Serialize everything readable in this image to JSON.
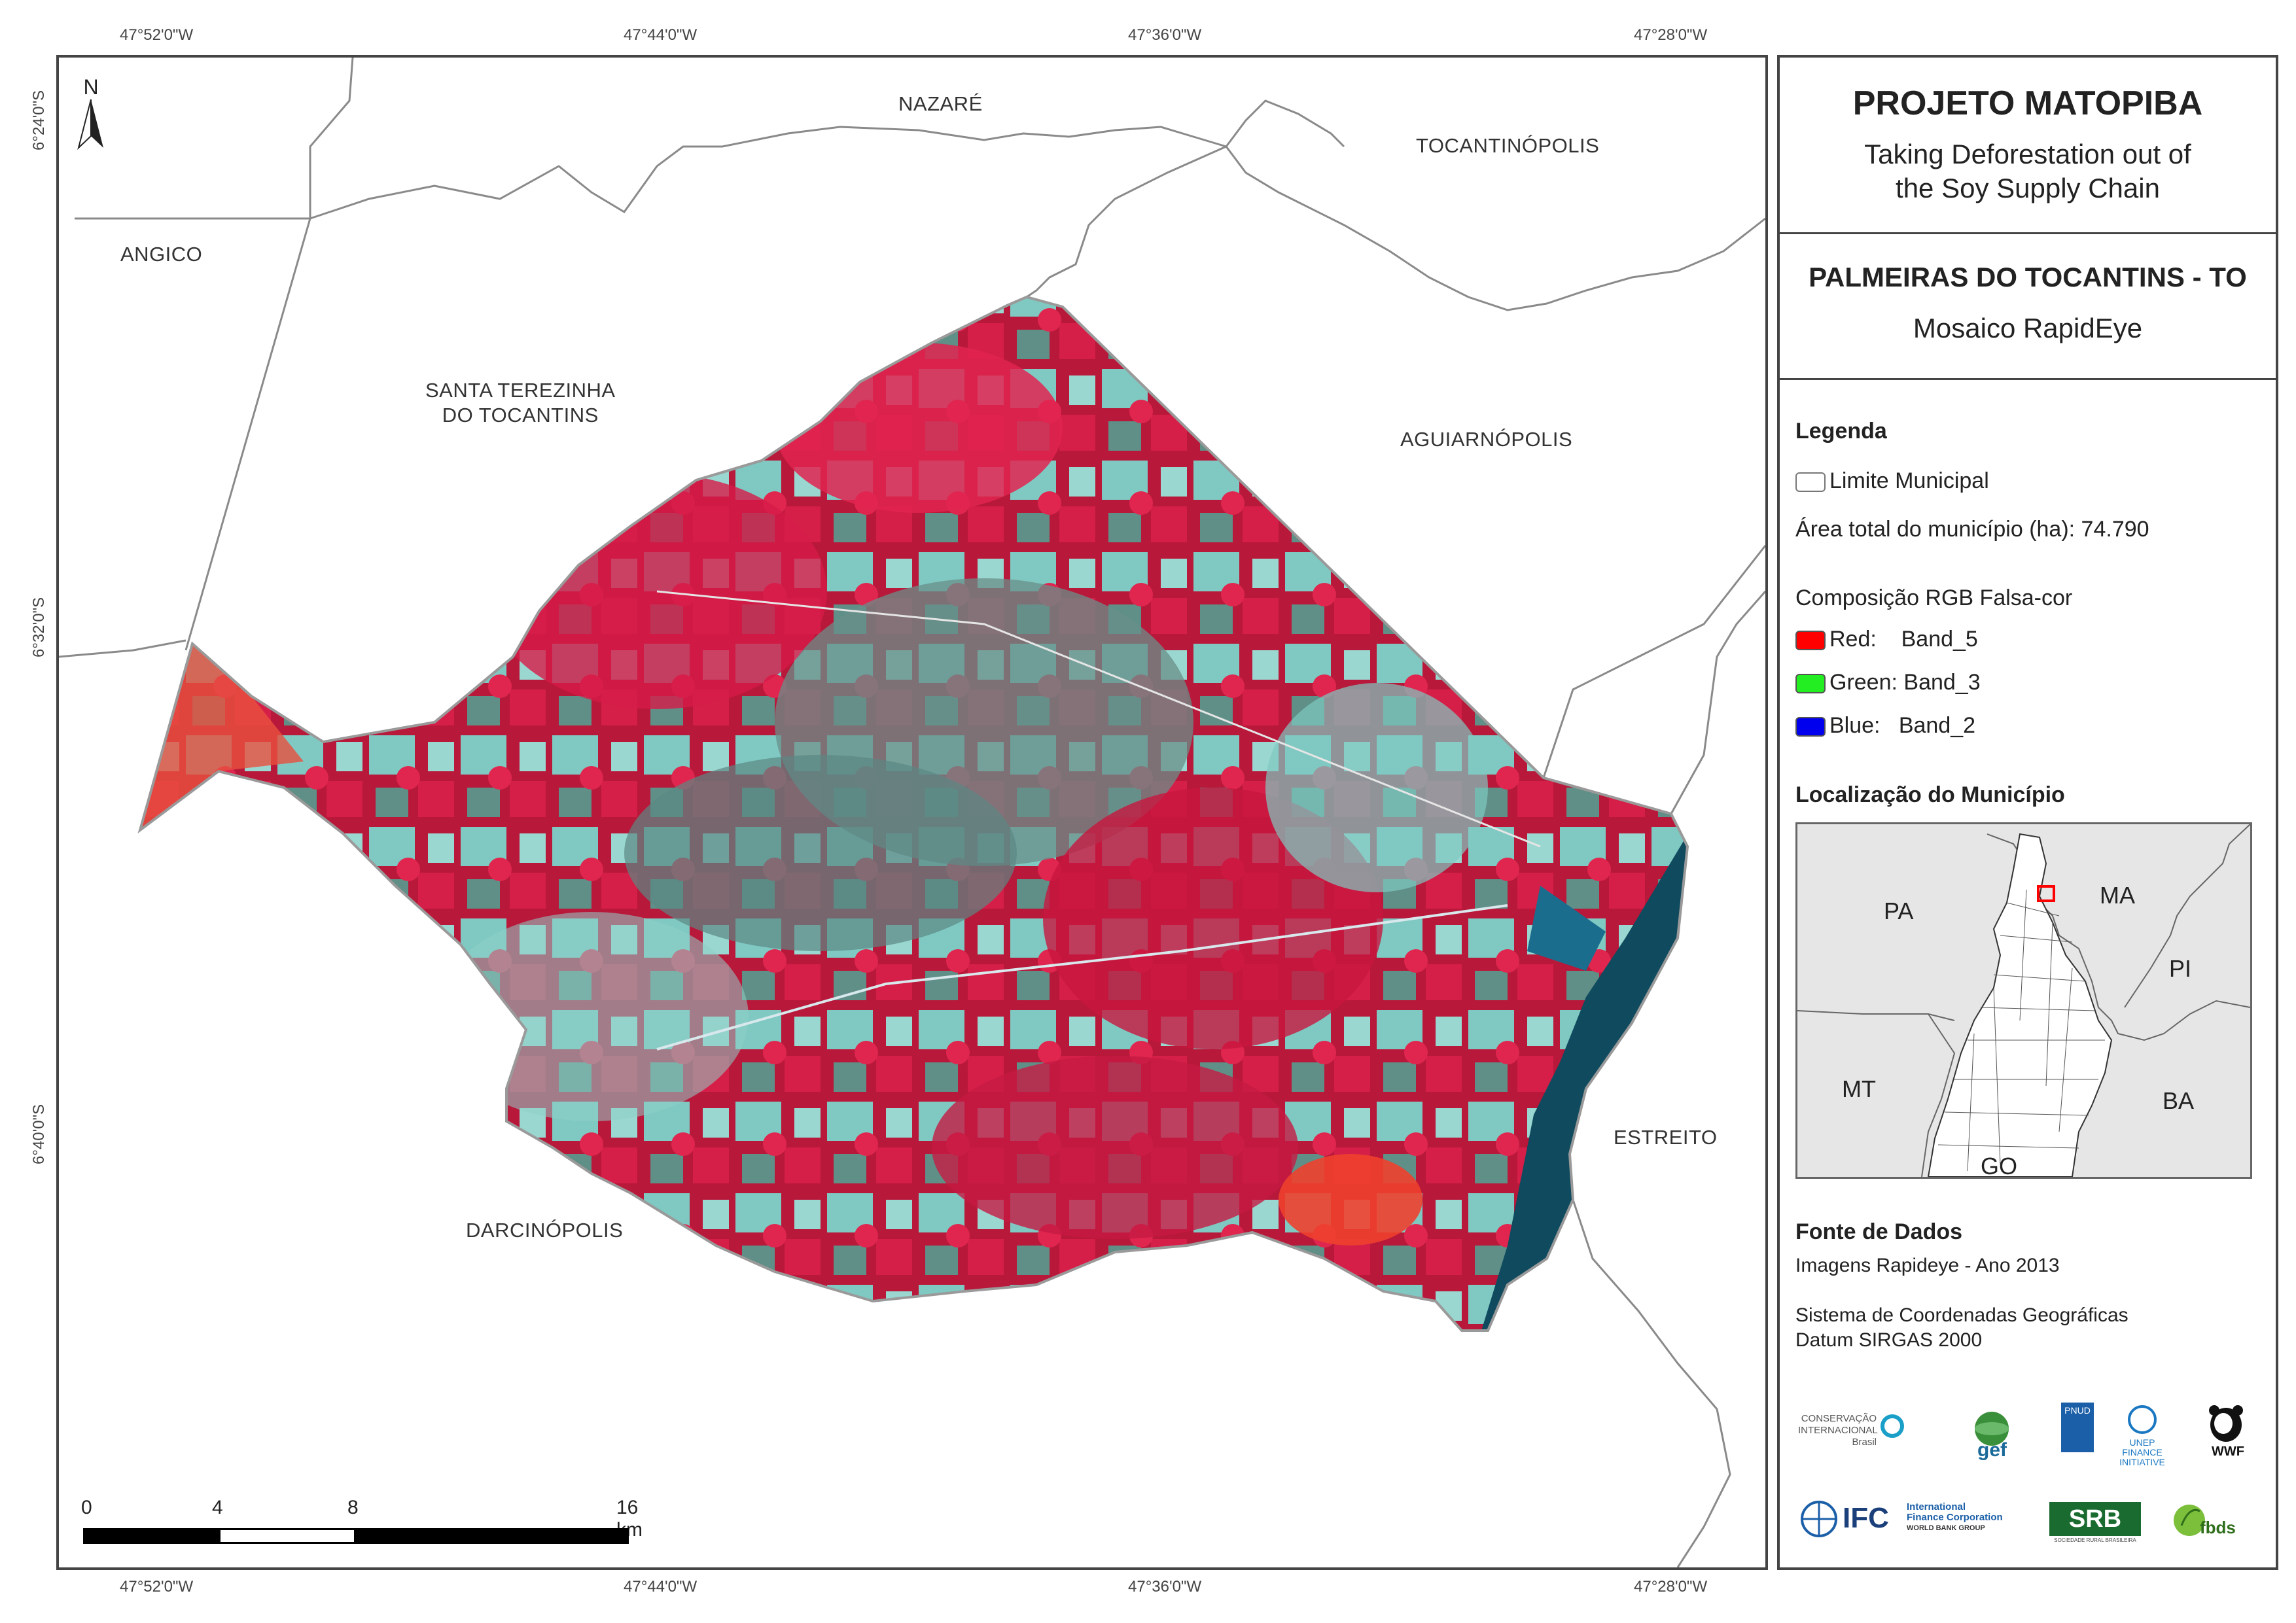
{
  "coords": {
    "top": [
      "47°52'0\"W",
      "47°44'0\"W",
      "47°36'0\"W",
      "47°28'0\"W"
    ],
    "bottom": [
      "47°52'0\"W",
      "47°44'0\"W",
      "47°36'0\"W",
      "47°28'0\"W"
    ],
    "left": [
      "6°24'0\"S",
      "6°32'0\"S",
      "6°40'0\"S"
    ]
  },
  "north_label": "N",
  "municipalities": {
    "nazare": "NAZARÉ",
    "tocantinopolis": "TOCANTINÓPOLIS",
    "angico": "ANGICO",
    "santa_terezinha_1": "SANTA TEREZINHA",
    "santa_terezinha_2": "DO TOCANTINS",
    "aguiarnopolis": "AGUIARNÓPOLIS",
    "estreito": "ESTREITO",
    "darcinopolis": "DARCINÓPOLIS"
  },
  "scale_bar": {
    "labels": [
      "0",
      "4",
      "8",
      "16 km"
    ]
  },
  "panel": {
    "title": "PROJETO MATOPIBA",
    "subtitle_1": "Taking Deforestation out of",
    "subtitle_2": "the Soy Supply Chain",
    "municipio": "PALMEIRAS DO TOCANTINS - TO",
    "mosaic": "Mosaico RapidEye",
    "legend_title": "Legenda",
    "limite": "Limite Municipal",
    "area": "Área total do município (ha): 74.790",
    "composicao": "Composição RGB Falsa-cor",
    "bands": [
      {
        "label": "Red:    Band_5",
        "color": "#ff0000"
      },
      {
        "label": "Green: Band_3",
        "color": "#22ee22"
      },
      {
        "label": "Blue:   Band_2",
        "color": "#0000ee"
      }
    ],
    "localizacao_title": "Localização do Município",
    "inset_states": [
      "PA",
      "MA",
      "PI",
      "MT",
      "BA",
      "GO"
    ],
    "fonte_title": "Fonte de Dados",
    "fonte_1": "Imagens Rapideye - Ano 2013",
    "fonte_2": "Sistema de Coordenadas Geográficas",
    "fonte_3": "Datum SIRGAS 2000"
  },
  "logos": {
    "ci_1": "CONSERVAÇÃO",
    "ci_2": "INTERNACIONAL",
    "ci_3": "Brasil",
    "gef": "gef",
    "pnud": "PNUD",
    "unep_1": "UNEP",
    "unep_2": "FINANCE",
    "unep_3": "INITIATIVE",
    "wwf": "WWF",
    "ifc": "IFC",
    "ifc_1": "International",
    "ifc_2": "Finance Corporation",
    "ifc_3": "WORLD BANK GROUP",
    "srb": "SRB",
    "srb_sub": "SOCIEDADE RURAL BRASILEIRA",
    "fbds": "fbds"
  }
}
